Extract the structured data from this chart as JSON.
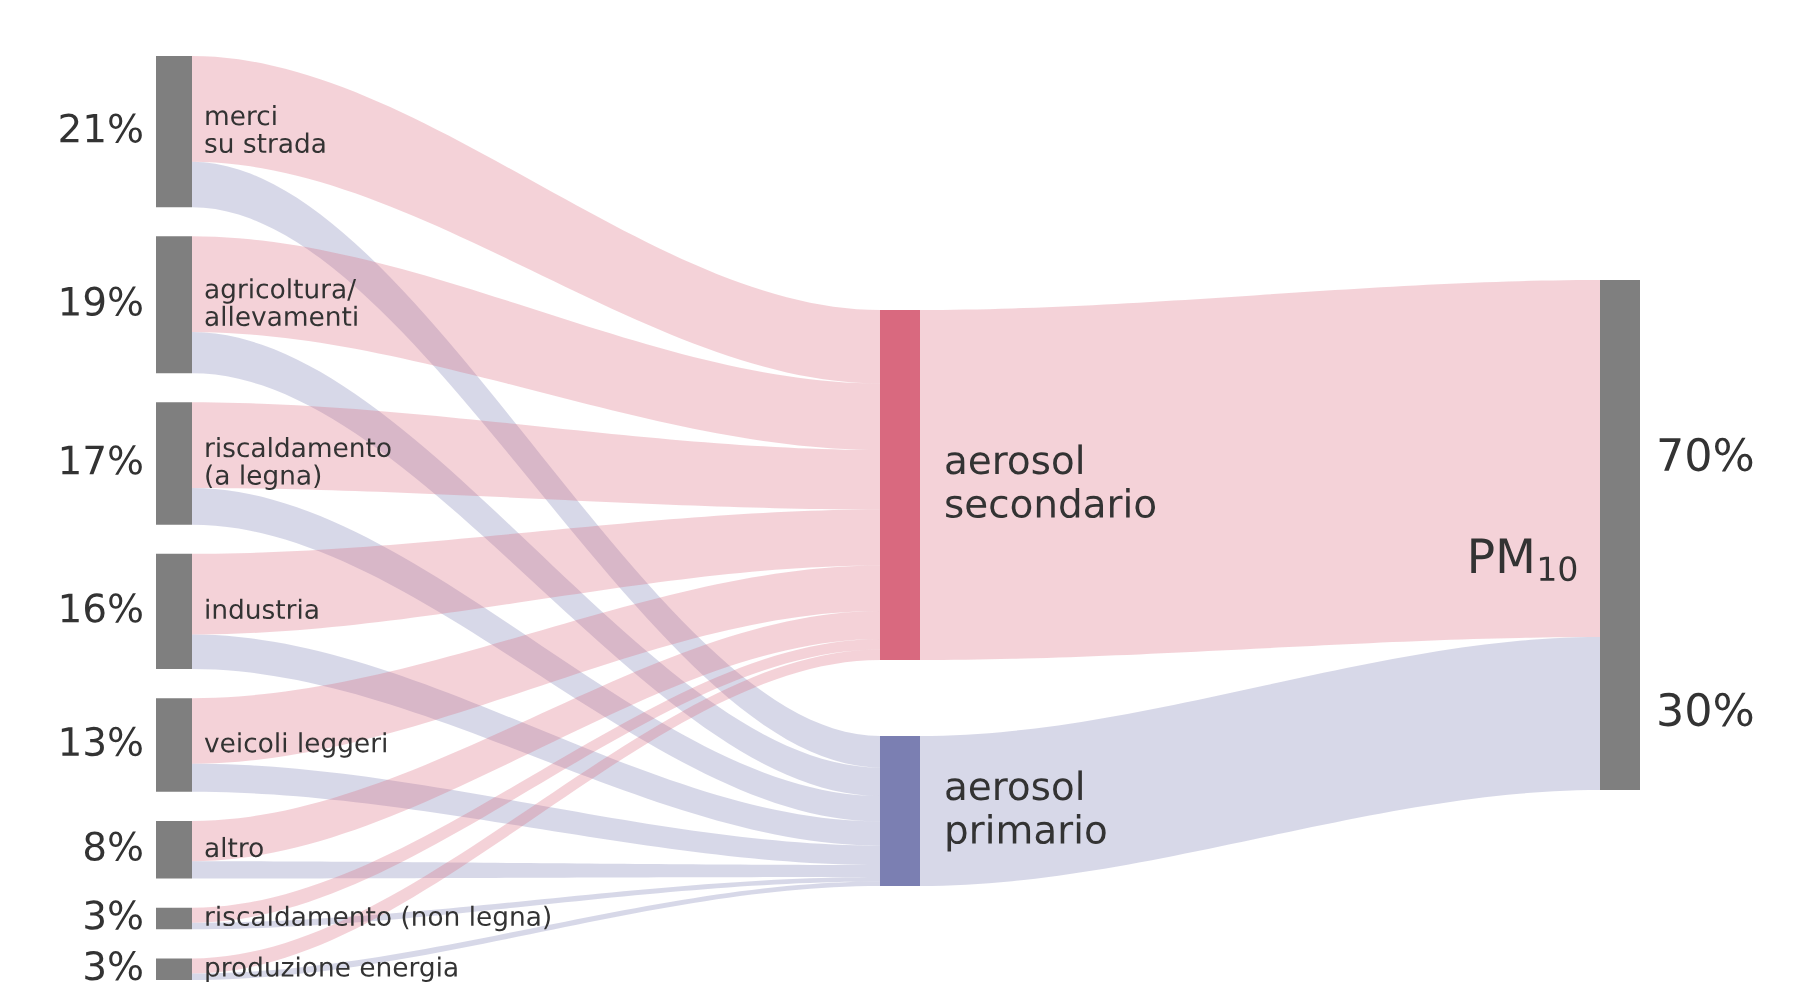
{
  "chart_data": {
    "type": "other",
    "categories": [
      "merci\nsu strada",
      "agricoltura/\nallevamenti",
      "riscaldamento\n(a legna)",
      "industria",
      "veicoli leggeri",
      "altro",
      "riscaldamento (non legna)",
      "produzione energia",
      "aerosol\nsecondario",
      "aerosol\nprimario",
      "PM$_{10}$"
    ],
    "values": [
      21,
      19,
      17,
      16,
      13,
      8,
      3,
      3,
      null,
      null,
      null
    ],
    "value_labels": [
      "21%",
      "19%",
      "17%",
      "16%",
      "13%",
      "8%",
      "3%",
      "3%",
      null,
      null,
      null
    ],
    "annotations": [
      "70%",
      "30%"
    ],
    "colors": [
      "#7f7f7f",
      "#7f7f7f",
      "#7f7f7f",
      "#7f7f7f",
      "#7f7f7f",
      "#7f7f7f",
      "#7f7f7f",
      "#7f7f7f",
      "#d9697f",
      "#7b7fb2",
      "#7f7f7f"
    ]
  }
}
